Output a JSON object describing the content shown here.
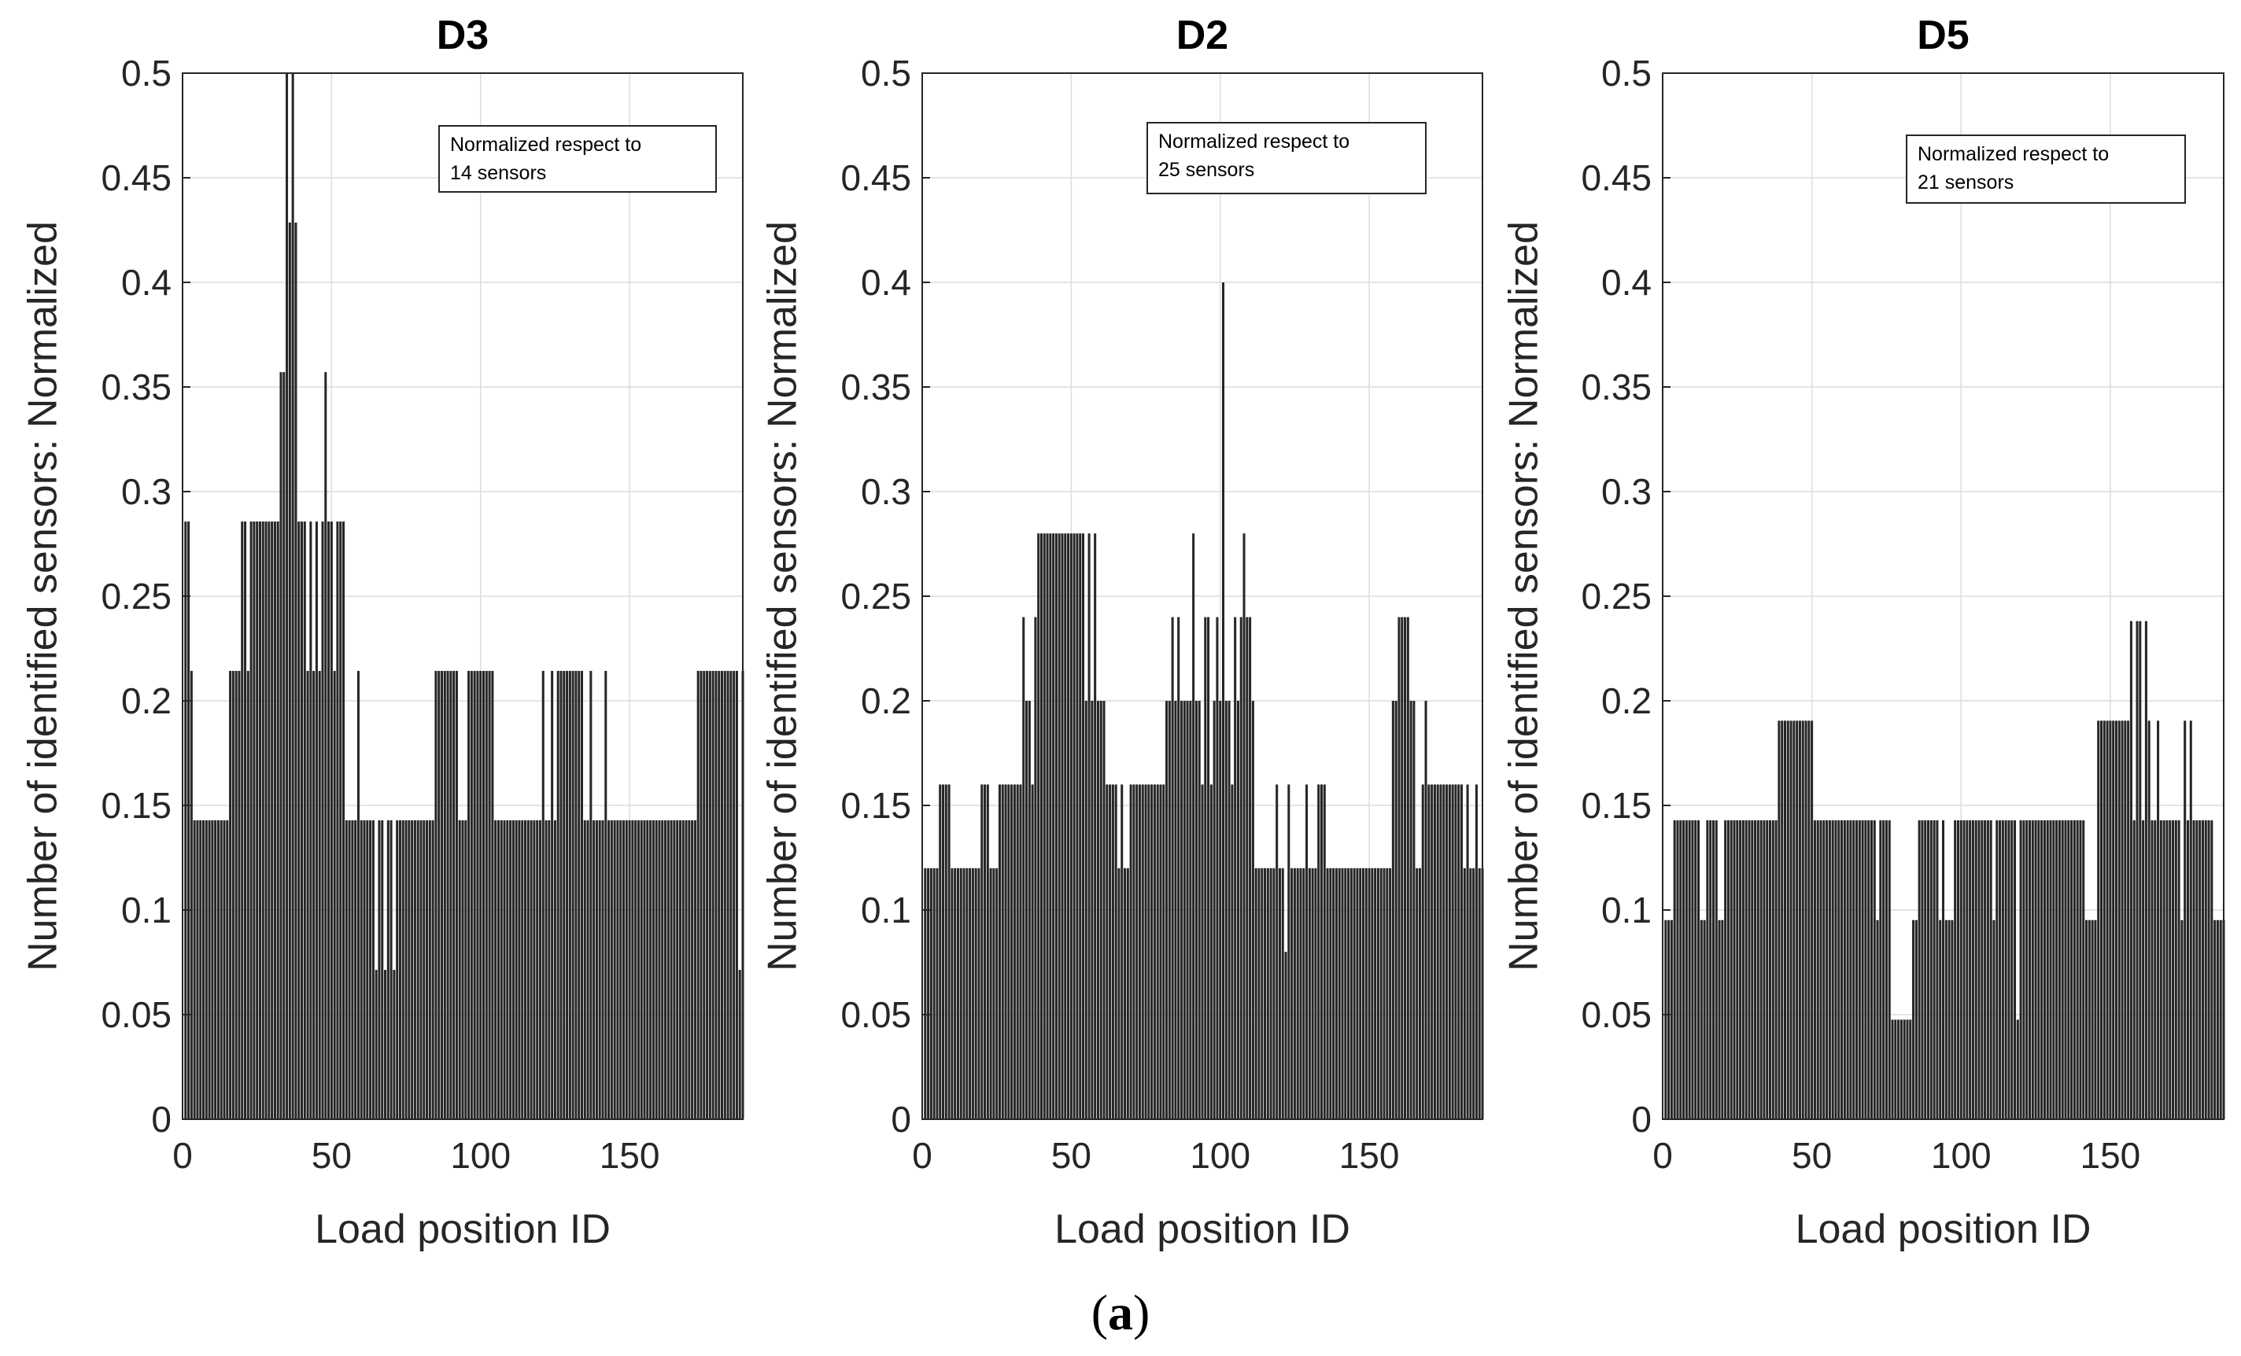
{
  "caption": {
    "open": "(",
    "letter": "a",
    "close": ")"
  },
  "chart_data": [
    {
      "type": "bar",
      "title": "D3",
      "xlabel": "Load position ID",
      "ylabel": "Number of identified sensors: Normalized",
      "xlim": [
        0,
        188
      ],
      "ylim": [
        0,
        0.5
      ],
      "xticks": [
        "0",
        "50",
        "100",
        "150"
      ],
      "yticks": [
        "0",
        "0.05",
        "0.1",
        "0.15",
        "0.2",
        "0.25",
        "0.3",
        "0.35",
        "0.4",
        "0.45",
        "0.5"
      ],
      "grid": true,
      "annotation": [
        "Normalized respect to",
        "14 sensors"
      ],
      "bar_color": "#262626",
      "runs": [
        [
          1,
          2,
          0.2857
        ],
        [
          3,
          3,
          0.2143
        ],
        [
          4,
          15,
          0.1429
        ],
        [
          16,
          19,
          0.2143
        ],
        [
          20,
          21,
          0.2857
        ],
        [
          22,
          22,
          0.2143
        ],
        [
          23,
          32,
          0.2857
        ],
        [
          33,
          34,
          0.3571
        ],
        [
          35,
          35,
          0.5
        ],
        [
          36,
          36,
          0.4286
        ],
        [
          37,
          37,
          0.5
        ],
        [
          38,
          38,
          0.4286
        ],
        [
          39,
          41,
          0.2857
        ],
        [
          42,
          42,
          0.2143
        ],
        [
          43,
          43,
          0.2857
        ],
        [
          44,
          44,
          0.2143
        ],
        [
          45,
          45,
          0.2857
        ],
        [
          46,
          46,
          0.2143
        ],
        [
          47,
          47,
          0.2857
        ],
        [
          48,
          48,
          0.3571
        ],
        [
          49,
          50,
          0.2857
        ],
        [
          51,
          51,
          0.2143
        ],
        [
          52,
          54,
          0.2857
        ],
        [
          55,
          58,
          0.1429
        ],
        [
          59,
          59,
          0.2143
        ],
        [
          60,
          64,
          0.1429
        ],
        [
          65,
          65,
          0.0714
        ],
        [
          66,
          67,
          0.1429
        ],
        [
          68,
          68,
          0.0714
        ],
        [
          69,
          70,
          0.1429
        ],
        [
          71,
          71,
          0.0714
        ],
        [
          72,
          84,
          0.1429
        ],
        [
          85,
          92,
          0.2143
        ],
        [
          93,
          95,
          0.1429
        ],
        [
          96,
          104,
          0.2143
        ],
        [
          105,
          120,
          0.1429
        ],
        [
          121,
          121,
          0.2143
        ],
        [
          122,
          123,
          0.1429
        ],
        [
          124,
          124,
          0.2143
        ],
        [
          125,
          125,
          0.1429
        ],
        [
          126,
          134,
          0.2143
        ],
        [
          135,
          136,
          0.1429
        ],
        [
          137,
          137,
          0.2143
        ],
        [
          138,
          141,
          0.1429
        ],
        [
          142,
          142,
          0.2143
        ],
        [
          143,
          172,
          0.1429
        ],
        [
          173,
          186,
          0.2143
        ],
        [
          187,
          187,
          0.0714
        ],
        [
          188,
          188,
          0.2143
        ]
      ]
    },
    {
      "type": "bar",
      "title": "D2",
      "xlabel": "Load position ID",
      "ylabel": "Number of identified sensors: Normalized",
      "xlim": [
        0,
        188
      ],
      "ylim": [
        0,
        0.5
      ],
      "xticks": [
        "0",
        "50",
        "100",
        "150"
      ],
      "yticks": [
        "0",
        "0.05",
        "0.1",
        "0.15",
        "0.2",
        "0.25",
        "0.3",
        "0.35",
        "0.4",
        "0.45",
        "0.5"
      ],
      "grid": true,
      "annotation": [
        "Normalized respect to",
        "25 sensors"
      ],
      "bar_color": "#262626",
      "runs": [
        [
          1,
          5,
          0.12
        ],
        [
          6,
          9,
          0.16
        ],
        [
          10,
          19,
          0.12
        ],
        [
          20,
          22,
          0.16
        ],
        [
          23,
          25,
          0.12
        ],
        [
          26,
          33,
          0.16
        ],
        [
          34,
          34,
          0.24
        ],
        [
          35,
          36,
          0.2
        ],
        [
          37,
          37,
          0.16
        ],
        [
          38,
          38,
          0.24
        ],
        [
          39,
          54,
          0.28
        ],
        [
          55,
          55,
          0.2
        ],
        [
          56,
          56,
          0.28
        ],
        [
          57,
          57,
          0.2
        ],
        [
          58,
          58,
          0.28
        ],
        [
          59,
          61,
          0.2
        ],
        [
          62,
          65,
          0.16
        ],
        [
          66,
          66,
          0.12
        ],
        [
          67,
          67,
          0.16
        ],
        [
          68,
          69,
          0.12
        ],
        [
          70,
          81,
          0.16
        ],
        [
          82,
          83,
          0.2
        ],
        [
          84,
          84,
          0.24
        ],
        [
          85,
          85,
          0.2
        ],
        [
          86,
          86,
          0.24
        ],
        [
          87,
          90,
          0.2
        ],
        [
          91,
          91,
          0.28
        ],
        [
          92,
          93,
          0.2
        ],
        [
          94,
          94,
          0.16
        ],
        [
          95,
          96,
          0.24
        ],
        [
          97,
          97,
          0.16
        ],
        [
          98,
          98,
          0.2
        ],
        [
          99,
          99,
          0.24
        ],
        [
          100,
          100,
          0.2
        ],
        [
          101,
          101,
          0.4
        ],
        [
          102,
          103,
          0.2
        ],
        [
          104,
          104,
          0.16
        ],
        [
          105,
          105,
          0.24
        ],
        [
          106,
          106,
          0.2
        ],
        [
          107,
          107,
          0.24
        ],
        [
          108,
          108,
          0.28
        ],
        [
          109,
          110,
          0.24
        ],
        [
          111,
          111,
          0.2
        ],
        [
          112,
          118,
          0.12
        ],
        [
          119,
          119,
          0.16
        ],
        [
          120,
          121,
          0.12
        ],
        [
          122,
          122,
          0.08
        ],
        [
          123,
          123,
          0.16
        ],
        [
          124,
          128,
          0.12
        ],
        [
          129,
          129,
          0.16
        ],
        [
          130,
          132,
          0.12
        ],
        [
          133,
          135,
          0.16
        ],
        [
          136,
          157,
          0.12
        ],
        [
          158,
          159,
          0.2
        ],
        [
          160,
          163,
          0.24
        ],
        [
          164,
          165,
          0.2
        ],
        [
          166,
          167,
          0.12
        ],
        [
          168,
          168,
          0.16
        ],
        [
          169,
          169,
          0.2
        ],
        [
          170,
          181,
          0.16
        ],
        [
          182,
          182,
          0.12
        ],
        [
          183,
          183,
          0.16
        ],
        [
          184,
          185,
          0.12
        ],
        [
          186,
          186,
          0.16
        ],
        [
          187,
          188,
          0.12
        ]
      ]
    },
    {
      "type": "bar",
      "title": "D5",
      "xlabel": "Load position ID",
      "ylabel": "Number of identified sensors: Normalized",
      "xlim": [
        0,
        188
      ],
      "ylim": [
        0,
        0.5
      ],
      "xticks": [
        "0",
        "50",
        "100",
        "150"
      ],
      "yticks": [
        "0",
        "0.05",
        "0.1",
        "0.15",
        "0.2",
        "0.25",
        "0.3",
        "0.35",
        "0.4",
        "0.45",
        "0.5"
      ],
      "grid": true,
      "annotation": [
        "Normalized respect to",
        "21 sensors"
      ],
      "bar_color": "#262626",
      "runs": [
        [
          1,
          3,
          0.0952
        ],
        [
          4,
          12,
          0.1429
        ],
        [
          13,
          14,
          0.0952
        ],
        [
          15,
          18,
          0.1429
        ],
        [
          19,
          20,
          0.0952
        ],
        [
          21,
          38,
          0.1429
        ],
        [
          39,
          50,
          0.1905
        ],
        [
          51,
          71,
          0.1429
        ],
        [
          72,
          72,
          0.0952
        ],
        [
          73,
          76,
          0.1429
        ],
        [
          77,
          83,
          0.0476
        ],
        [
          84,
          85,
          0.0952
        ],
        [
          86,
          92,
          0.1429
        ],
        [
          93,
          93,
          0.0952
        ],
        [
          94,
          94,
          0.1429
        ],
        [
          95,
          97,
          0.0952
        ],
        [
          98,
          110,
          0.1429
        ],
        [
          111,
          111,
          0.0952
        ],
        [
          112,
          118,
          0.1429
        ],
        [
          119,
          119,
          0.0476
        ],
        [
          120,
          141,
          0.1429
        ],
        [
          142,
          145,
          0.0952
        ],
        [
          146,
          156,
          0.1905
        ],
        [
          157,
          157,
          0.2381
        ],
        [
          158,
          158,
          0.1429
        ],
        [
          159,
          160,
          0.2381
        ],
        [
          161,
          161,
          0.1429
        ],
        [
          162,
          162,
          0.2381
        ],
        [
          163,
          163,
          0.1905
        ],
        [
          164,
          165,
          0.1429
        ],
        [
          166,
          166,
          0.1905
        ],
        [
          167,
          173,
          0.1429
        ],
        [
          174,
          174,
          0.0952
        ],
        [
          175,
          175,
          0.1905
        ],
        [
          176,
          176,
          0.1429
        ],
        [
          177,
          177,
          0.1905
        ],
        [
          178,
          184,
          0.1429
        ],
        [
          185,
          188,
          0.0952
        ]
      ]
    }
  ]
}
